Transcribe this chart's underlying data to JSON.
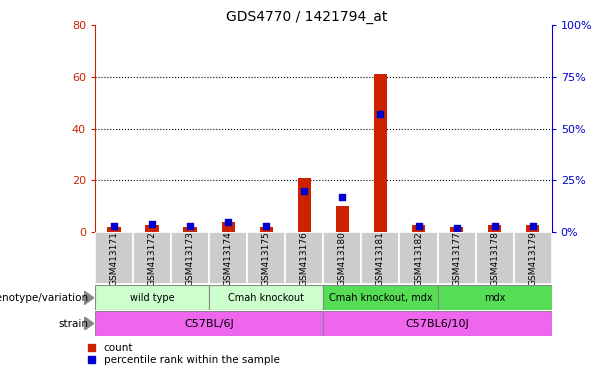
{
  "title": "GDS4770 / 1421794_at",
  "samples": [
    "GSM413171",
    "GSM413172",
    "GSM413173",
    "GSM413174",
    "GSM413175",
    "GSM413176",
    "GSM413180",
    "GSM413181",
    "GSM413182",
    "GSM413177",
    "GSM413178",
    "GSM413179"
  ],
  "counts": [
    2,
    3,
    2,
    4,
    2,
    21,
    10,
    61,
    3,
    2,
    3,
    3
  ],
  "percentiles": [
    3,
    4,
    3,
    5,
    3,
    20,
    17,
    57,
    3,
    2,
    3,
    3
  ],
  "ylim_left": [
    0,
    80
  ],
  "ylim_right": [
    0,
    100
  ],
  "yticks_left": [
    0,
    20,
    40,
    60,
    80
  ],
  "yticks_right": [
    0,
    25,
    50,
    75,
    100
  ],
  "ytick_labels_left": [
    "0",
    "20",
    "40",
    "60",
    "80"
  ],
  "ytick_labels_right": [
    "0%",
    "25%",
    "50%",
    "75%",
    "100%"
  ],
  "bar_color": "#cc2200",
  "dot_color": "#0000cc",
  "groups": [
    {
      "label": "wild type",
      "start": 0,
      "end": 3,
      "color": "#ccffcc"
    },
    {
      "label": "Cmah knockout",
      "start": 3,
      "end": 6,
      "color": "#ccffcc"
    },
    {
      "label": "Cmah knockout, mdx",
      "start": 6,
      "end": 9,
      "color": "#55dd55"
    },
    {
      "label": "mdx",
      "start": 9,
      "end": 12,
      "color": "#55dd55"
    }
  ],
  "strains": [
    {
      "label": "C57BL/6J",
      "start": 0,
      "end": 6,
      "color": "#ee66ee"
    },
    {
      "label": "C57BL6/10J",
      "start": 6,
      "end": 12,
      "color": "#ee66ee"
    }
  ],
  "genotype_label": "genotype/variation",
  "strain_label": "strain",
  "legend_count": "count",
  "legend_percentile": "percentile rank within the sample",
  "bar_width": 0.35,
  "dot_size": 18,
  "tick_label_area_color": "#cccccc",
  "left_axis_color": "#cc2200",
  "right_axis_color": "#0000cc",
  "geno_border_color": "#888888",
  "strain_border_color": "#888888"
}
